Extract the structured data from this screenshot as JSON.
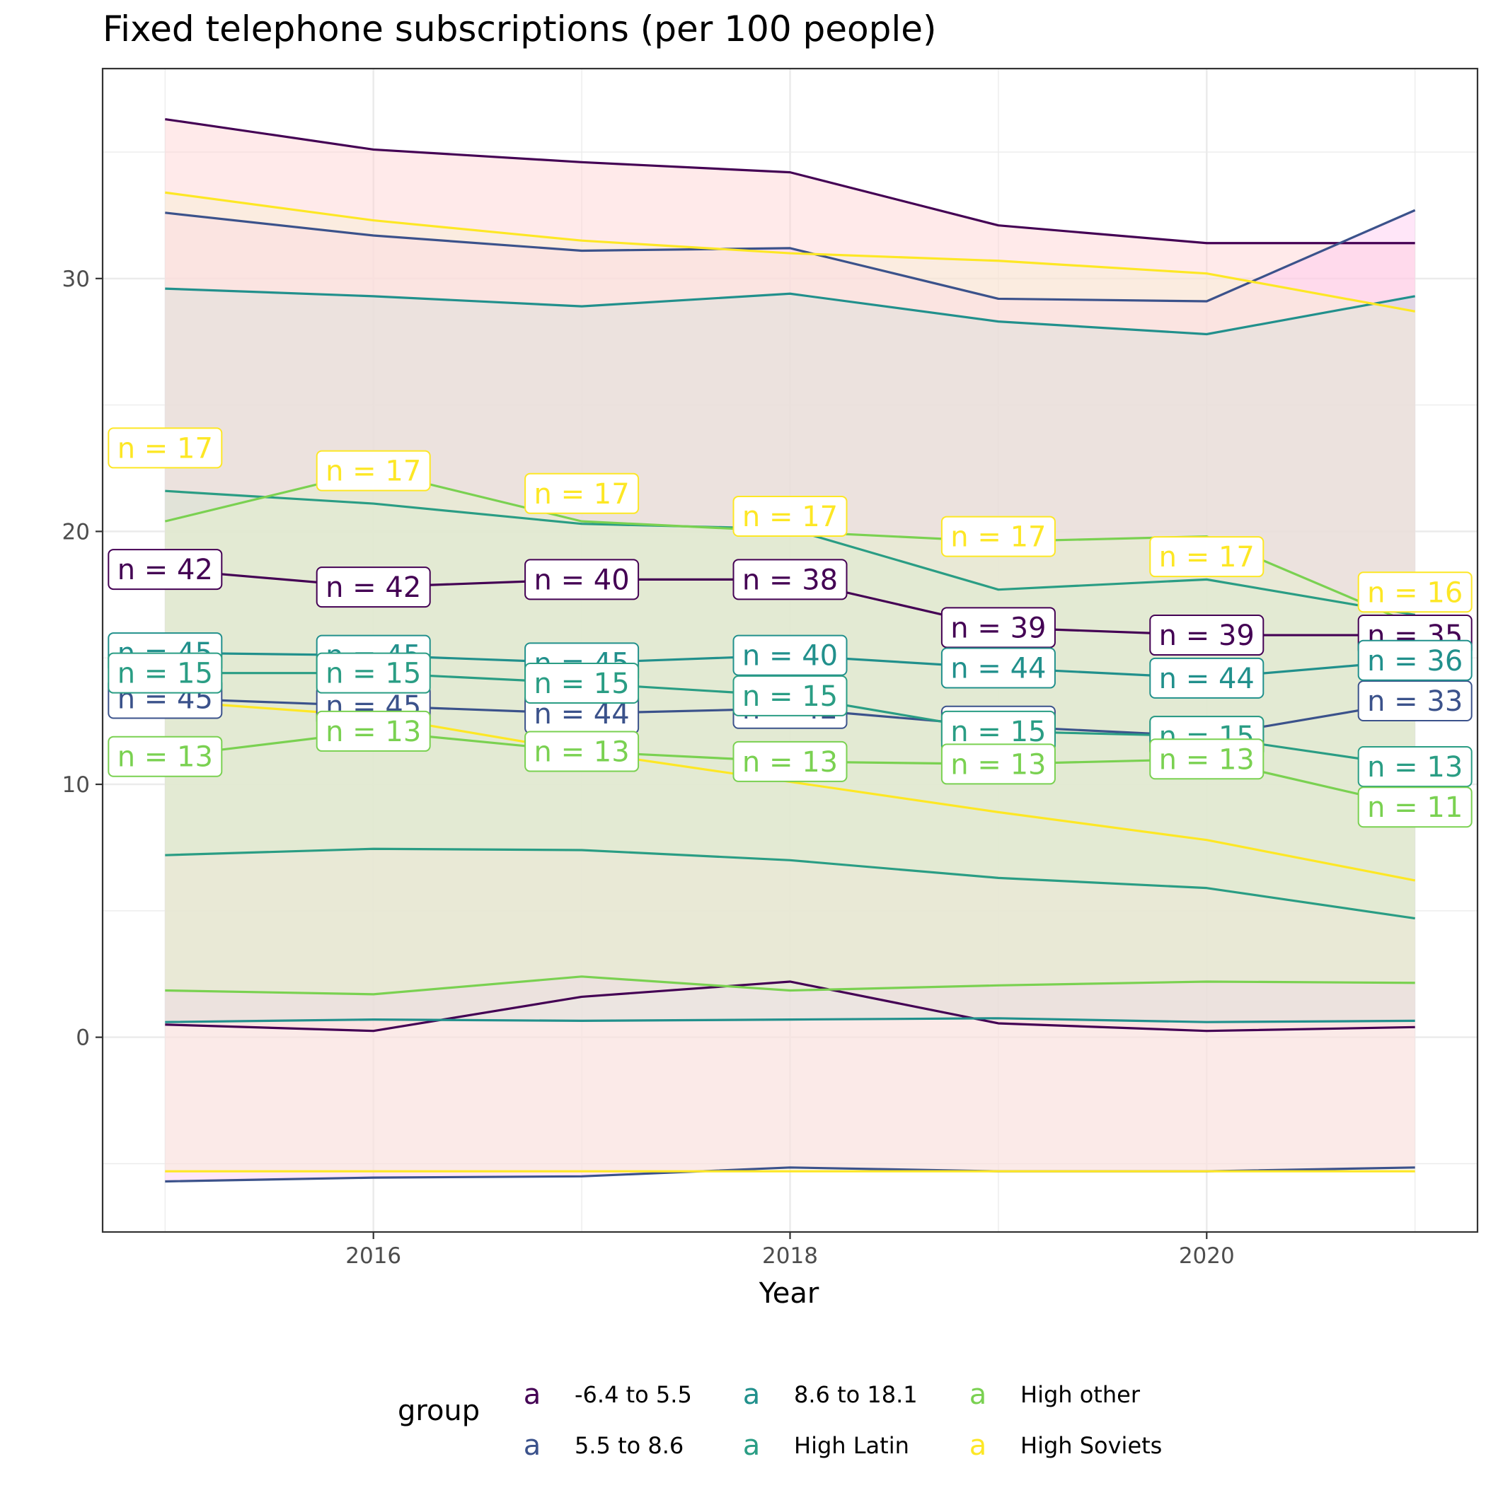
{
  "chart_data": {
    "type": "line",
    "title": "Fixed telephone subscriptions (per 100 people)",
    "xlabel": "Year",
    "ylabel": "",
    "xlim": [
      2014.7,
      2021.3
    ],
    "ylim": [
      -7.7,
      38.3
    ],
    "x_ticks": [
      2016,
      2018,
      2020
    ],
    "y_ticks": [
      0,
      10,
      20,
      30
    ],
    "grid": true,
    "legend": {
      "title": "group",
      "position": "bottom",
      "key_glyph": "a"
    },
    "x": [
      2015,
      2016,
      2017,
      2018,
      2019,
      2020,
      2021
    ],
    "series": [
      {
        "name": "-6.4 to 5.5",
        "color": "#440154",
        "fill": "#ffd1d1",
        "mean": [
          18.5,
          17.8,
          18.1,
          18.1,
          16.2,
          15.9,
          15.9
        ],
        "upper": [
          36.3,
          35.1,
          34.6,
          34.2,
          32.1,
          31.4,
          31.4
        ],
        "lower": [
          0.5,
          0.25,
          1.6,
          2.2,
          0.55,
          0.25,
          0.4
        ],
        "n": [
          42,
          42,
          40,
          38,
          39,
          39,
          35
        ]
      },
      {
        "name": "5.5 to 8.6",
        "color": "#3b528b",
        "fill": "#ffc8f0",
        "mean": [
          13.4,
          13.1,
          12.8,
          13.0,
          12.3,
          11.9,
          13.3
        ],
        "upper": [
          32.6,
          31.7,
          31.1,
          31.2,
          29.2,
          29.1,
          32.7
        ],
        "lower": [
          -5.7,
          -5.55,
          -5.5,
          -5.15,
          -5.3,
          -5.3,
          -5.15
        ],
        "n": [
          45,
          45,
          44,
          42,
          45,
          45,
          33
        ]
      },
      {
        "name": "8.6 to 18.1",
        "color": "#21908c",
        "fill": "#c4d3de",
        "mean": [
          15.2,
          15.1,
          14.8,
          15.1,
          14.6,
          14.2,
          14.9
        ],
        "upper": [
          29.6,
          29.3,
          28.9,
          29.4,
          28.3,
          27.8,
          29.3
        ],
        "lower": [
          0.6,
          0.7,
          0.65,
          0.7,
          0.75,
          0.6,
          0.65
        ],
        "n": [
          45,
          45,
          45,
          40,
          44,
          44,
          36
        ]
      },
      {
        "name": "High Latin",
        "color": "#2a9d84",
        "fill": "#b5dccf",
        "mean": [
          14.4,
          14.4,
          14.0,
          13.5,
          12.1,
          11.9,
          10.7
        ],
        "upper": [
          21.6,
          21.1,
          20.3,
          20.1,
          17.7,
          18.1,
          16.7
        ],
        "lower": [
          7.2,
          7.45,
          7.4,
          7.0,
          6.3,
          5.9,
          4.7
        ],
        "n": [
          15,
          15,
          15,
          15,
          15,
          15,
          13
        ]
      },
      {
        "name": "High other",
        "color": "#7ad151",
        "fill": "#d9f5c6",
        "mean": [
          11.1,
          12.1,
          11.3,
          10.9,
          10.8,
          11.0,
          9.1
        ],
        "upper": [
          20.4,
          22.4,
          20.4,
          20.0,
          19.6,
          19.8,
          16.3
        ],
        "lower": [
          1.85,
          1.7,
          2.4,
          1.85,
          2.05,
          2.2,
          2.15
        ],
        "n": [
          13,
          13,
          13,
          13,
          13,
          13,
          11
        ]
      },
      {
        "name": "High Soviets",
        "color": "#fde725",
        "fill": "#f7f0d4",
        "mean": [
          13.3,
          12.7,
          11.3,
          10.1,
          8.9,
          7.8,
          6.2
        ],
        "upper": [
          33.4,
          32.3,
          31.5,
          31.0,
          30.7,
          30.2,
          28.7
        ],
        "lower": [
          -5.3,
          -5.3,
          -5.3,
          -5.3,
          -5.3,
          -5.3,
          -5.3
        ],
        "n_label_y": [
          23.3,
          22.4,
          21.5,
          20.6,
          19.8,
          19.0,
          17.6
        ],
        "n": [
          17,
          17,
          17,
          17,
          17,
          17,
          16
        ]
      }
    ]
  }
}
